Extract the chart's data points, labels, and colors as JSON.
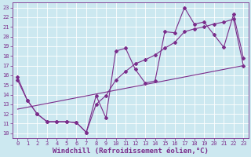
{
  "xlabel": "Windchill (Refroidissement éolien,°C)",
  "background_color": "#cce8f0",
  "grid_color": "#ffffff",
  "line_color": "#7b2d8b",
  "xlim": [
    -0.5,
    23.5
  ],
  "ylim": [
    9.5,
    23.5
  ],
  "xticks": [
    0,
    1,
    2,
    3,
    4,
    5,
    6,
    7,
    8,
    9,
    10,
    11,
    12,
    13,
    14,
    15,
    16,
    17,
    18,
    19,
    20,
    21,
    22,
    23
  ],
  "yticks": [
    10,
    11,
    12,
    13,
    14,
    15,
    16,
    17,
    18,
    19,
    20,
    21,
    22,
    23
  ],
  "line1_x": [
    0,
    1,
    2,
    3,
    4,
    5,
    6,
    7,
    8,
    9,
    10,
    11,
    12,
    13,
    14,
    15,
    16,
    17,
    18,
    19,
    20,
    21,
    22,
    23
  ],
  "line1_y": [
    15.8,
    13.4,
    12.0,
    11.2,
    11.2,
    11.2,
    11.1,
    10.1,
    13.9,
    11.6,
    18.5,
    18.8,
    16.6,
    15.2,
    15.4,
    20.5,
    20.4,
    23.0,
    21.3,
    21.5,
    20.2,
    18.9,
    22.3,
    17.8
  ],
  "line2_x": [
    0,
    1,
    2,
    3,
    4,
    5,
    6,
    7,
    8,
    9,
    10,
    11,
    12,
    13,
    14,
    15,
    16,
    17,
    18,
    19,
    20,
    21,
    22,
    23
  ],
  "line2_y": [
    15.5,
    13.4,
    12.0,
    11.2,
    11.2,
    11.2,
    11.1,
    10.1,
    13.0,
    13.9,
    15.5,
    16.4,
    17.2,
    17.6,
    18.1,
    18.8,
    19.4,
    20.5,
    20.8,
    21.0,
    21.3,
    21.5,
    21.8,
    17.0
  ],
  "line3_x": [
    0,
    23
  ],
  "line3_y": [
    12.5,
    17.0
  ],
  "marker": "D",
  "markersize": 2.0,
  "linewidth": 0.8,
  "tick_fontsize": 5.0,
  "xlabel_fontsize": 6.5,
  "figsize": [
    3.2,
    2.0
  ],
  "dpi": 100
}
